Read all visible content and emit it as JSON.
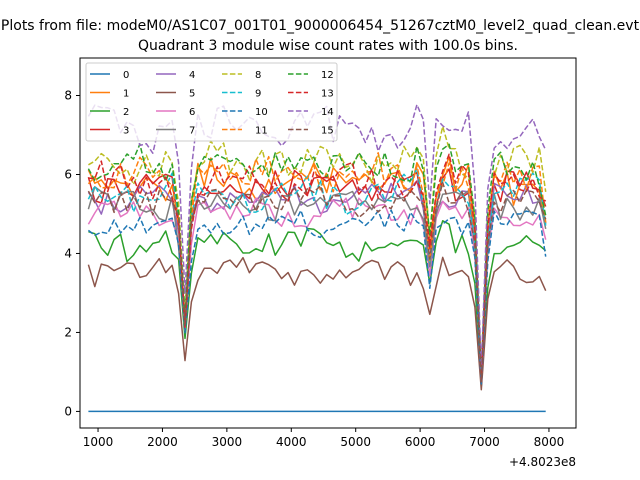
{
  "suptitle": "Plots from file: modeM0/AS1C07_001T01_9000006454_51267cztM0_level2_quad_clean.evt",
  "chart_data": {
    "type": "line",
    "title": "Quadrant 3 module wise count rates with 100.0s bins.",
    "xlabel": "",
    "ylabel": "",
    "x_offset_label": "+4.8023e8",
    "xlim": [
      720,
      8420
    ],
    "ylim": [
      -0.42,
      8.95
    ],
    "x_ticks": [
      1000,
      2000,
      3000,
      4000,
      5000,
      6000,
      7000,
      8000
    ],
    "y_ticks": [
      0,
      2,
      4,
      6,
      8
    ],
    "grid": false,
    "legend_position": "top-left",
    "legend_columns": 4,
    "x_start": 850,
    "x_step": 100,
    "x_count": 72,
    "series": [
      {
        "name": "0",
        "color": "#1f77b4",
        "linestyle": "solid",
        "base": 0.0,
        "amp": 0.0,
        "seed": 0
      },
      {
        "name": "1",
        "color": "#ff7f0e",
        "linestyle": "solid",
        "base": 5.8,
        "amp": 0.45,
        "seed": 1
      },
      {
        "name": "2",
        "color": "#2ca02c",
        "linestyle": "solid",
        "base": 4.25,
        "amp": 0.35,
        "seed": 2
      },
      {
        "name": "3",
        "color": "#d62728",
        "linestyle": "solid",
        "base": 5.65,
        "amp": 0.4,
        "seed": 3
      },
      {
        "name": "4",
        "color": "#9467bd",
        "linestyle": "solid",
        "base": 5.4,
        "amp": 0.3,
        "seed": 4
      },
      {
        "name": "5",
        "color": "#8c564b",
        "linestyle": "solid",
        "base": 3.55,
        "amp": 0.3,
        "seed": 5
      },
      {
        "name": "6",
        "color": "#e377c2",
        "linestyle": "solid",
        "base": 5.05,
        "amp": 0.3,
        "seed": 6
      },
      {
        "name": "7",
        "color": "#7f7f7f",
        "linestyle": "solid",
        "base": 5.3,
        "amp": 0.35,
        "seed": 7
      },
      {
        "name": "8",
        "color": "#bcbd22",
        "linestyle": "dashed",
        "base": 6.35,
        "amp": 0.45,
        "seed": 8
      },
      {
        "name": "9",
        "color": "#17becf",
        "linestyle": "dashed",
        "base": 5.5,
        "amp": 0.4,
        "seed": 9
      },
      {
        "name": "10",
        "color": "#1f77b4",
        "linestyle": "dashed",
        "base": 4.75,
        "amp": 0.3,
        "seed": 10
      },
      {
        "name": "11",
        "color": "#ff7f0e",
        "linestyle": "dashed",
        "base": 6.0,
        "amp": 0.4,
        "seed": 11
      },
      {
        "name": "12",
        "color": "#2ca02c",
        "linestyle": "dashed",
        "base": 6.25,
        "amp": 0.4,
        "seed": 12
      },
      {
        "name": "13",
        "color": "#d62728",
        "linestyle": "dashed",
        "base": 5.8,
        "amp": 0.4,
        "seed": 13
      },
      {
        "name": "14",
        "color": "#9467bd",
        "linestyle": "dashed",
        "base": 7.15,
        "amp": 0.5,
        "seed": 14
      },
      {
        "name": "15",
        "color": "#8c564b",
        "linestyle": "dashed",
        "base": 5.35,
        "amp": 0.35,
        "seed": 15
      }
    ],
    "dips": [
      {
        "x": 2350,
        "depth": 0.6
      },
      {
        "x": 6150,
        "depth": 0.35
      },
      {
        "x": 6950,
        "depth": 0.85
      },
      {
        "x": 8050,
        "depth": 0.55
      }
    ]
  }
}
